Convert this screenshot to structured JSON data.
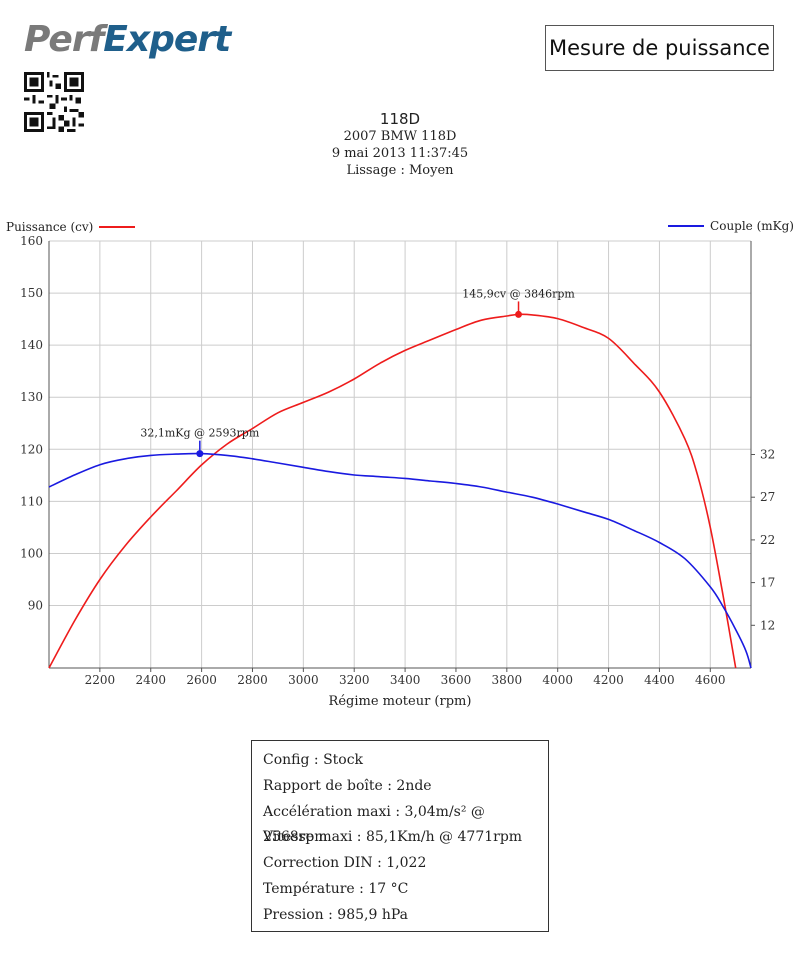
{
  "header": {
    "logo_perf": "Perf",
    "logo_expert": "Expert",
    "title": "Mesure de puissance",
    "model": "118D",
    "vehicle": "2007 BMW 118D",
    "date": "9 mai 2013 11:37:45",
    "smoothing": "Lissage : Moyen"
  },
  "colors": {
    "power": "#ee1c1c",
    "torque": "#1a1ae0",
    "grid": "#cccccc",
    "logo_grey": "#7a7a7a",
    "logo_blue": "#1f5f8b"
  },
  "chart_data": {
    "type": "line",
    "xlabel": "Régime moteur (rpm)",
    "x_ticks": [
      2200,
      2400,
      2600,
      2800,
      3000,
      3200,
      3400,
      3600,
      3800,
      4000,
      4200,
      4400,
      4600
    ],
    "xlim": [
      2000,
      4760
    ],
    "y_left_label": "Puissance (cv)",
    "y_left_ticks": [
      90,
      100,
      110,
      120,
      130,
      140,
      150,
      160
    ],
    "y_left_lim": [
      78,
      160
    ],
    "y_right_label": "Couple (mKg)",
    "y_right_ticks": [
      12,
      17,
      22,
      27,
      32
    ],
    "y_right_lim": [
      7,
      57
    ],
    "grid": true,
    "series": [
      {
        "name": "Puissance (cv)",
        "axis": "left",
        "x": [
          2000,
          2100,
          2200,
          2300,
          2400,
          2500,
          2600,
          2700,
          2800,
          2900,
          3000,
          3100,
          3200,
          3300,
          3400,
          3500,
          3600,
          3700,
          3800,
          3846,
          3900,
          4000,
          4100,
          4200,
          4300,
          4400,
          4500,
          4550,
          4600,
          4650,
          4700
        ],
        "y": [
          78,
          87,
          95,
          101.5,
          107,
          112,
          117,
          121,
          124,
          127,
          129,
          131,
          133.5,
          136.5,
          139,
          141,
          143,
          144.8,
          145.6,
          145.9,
          145.8,
          145.1,
          143.4,
          141.3,
          136.5,
          131,
          122,
          115,
          105,
          92,
          78
        ]
      },
      {
        "name": "Couple (mKg)",
        "axis": "right",
        "x": [
          2000,
          2100,
          2200,
          2300,
          2400,
          2500,
          2593,
          2700,
          2800,
          2900,
          3000,
          3100,
          3200,
          3300,
          3400,
          3500,
          3600,
          3700,
          3800,
          3900,
          4000,
          4100,
          4200,
          4300,
          4400,
          4500,
          4600,
          4650,
          4700,
          4740,
          4760
        ],
        "y": [
          28.2,
          29.6,
          30.8,
          31.5,
          31.9,
          32.05,
          32.1,
          31.9,
          31.5,
          31.0,
          30.5,
          30.0,
          29.6,
          29.4,
          29.2,
          28.9,
          28.6,
          28.2,
          27.6,
          27.0,
          26.2,
          25.3,
          24.4,
          23.1,
          21.7,
          19.8,
          16.5,
          14.2,
          11.5,
          9.0,
          7.0
        ]
      }
    ],
    "annotations": [
      {
        "text": "145,9cv @ 3846rpm",
        "series": "Puissance (cv)",
        "x": 3846,
        "y": 145.9
      },
      {
        "text": "32,1mKg @ 2593rpm",
        "series": "Couple (mKg)",
        "x": 2593,
        "y": 32.1
      }
    ]
  },
  "info": {
    "config": "Config : Stock",
    "gear": "Rapport de boîte : 2nde",
    "accel": "Accélération maxi : 3,04m/s² @ 2568rpm",
    "speed": "Vitesse maxi : 85,1Km/h @ 4771rpm",
    "din": "Correction DIN : 1,022",
    "temp": "Température : 17 °C",
    "pressure": "Pression : 985,9 hPa"
  }
}
